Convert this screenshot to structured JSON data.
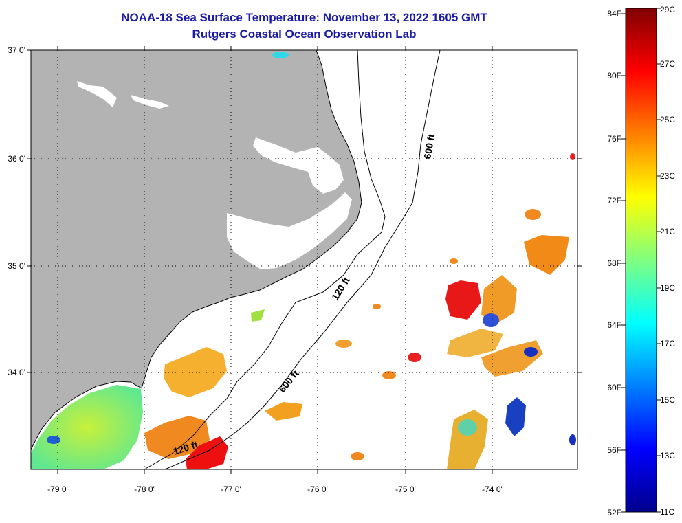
{
  "header": {
    "title_line1": "NOAA-18 Sea Surface Temperature:  November 13, 2022 1605 GMT",
    "title_line2": "Rutgers Coastal Ocean Observation Lab"
  },
  "map": {
    "lon_labels": [
      "-79 0'",
      "-78 0'",
      "-77 0'",
      "-76 0'",
      "-75 0'",
      "-74 0'"
    ],
    "lat_labels": [
      "37 0'",
      "36 0'",
      "35 0'",
      "34 0'"
    ],
    "contour_labels": [
      "600 ft",
      "120 ft",
      "600 ft",
      "120 ft"
    ],
    "land_color": "#b3b3b3",
    "ocean_color": "#ffffff"
  },
  "colorbar": {
    "fahrenheit_labels": [
      "84F",
      "80F",
      "76F",
      "72F",
      "68F",
      "64F",
      "60F",
      "56F",
      "52F"
    ],
    "celsius_labels": [
      "29C",
      "27C",
      "25C",
      "23C",
      "21C",
      "19C",
      "17C",
      "15C",
      "13C",
      "11C"
    ],
    "range_celsius": [
      11,
      29
    ],
    "colors": [
      "#00008c",
      "#0000ff",
      "#0080ff",
      "#00ffff",
      "#80ff80",
      "#ffff00",
      "#ff8000",
      "#ff0000",
      "#800000"
    ]
  }
}
